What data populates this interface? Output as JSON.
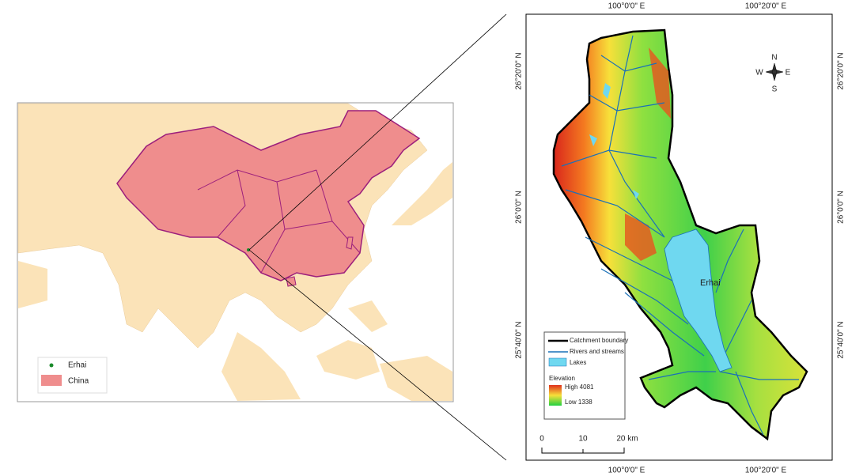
{
  "inset_map": {
    "legend": {
      "erhai": "Erhai",
      "china": "China"
    }
  },
  "catchment_map": {
    "grid_labels": {
      "lon_1": "100°0'0\" E",
      "lon_2": "100°20'0\" E",
      "lat_1": "26°20'0\" N",
      "lat_2": "26°0'0\" N",
      "lat_3": "25°40'0\" N"
    },
    "compass": {
      "n": "N",
      "e": "E",
      "s": "S",
      "w": "W"
    },
    "lake_label": "Erhai",
    "legend": {
      "boundary": "Catchment boundary",
      "rivers": "Rivers and streams",
      "lakes": "Lakes",
      "elevation": "Elevation",
      "high": "High 4081",
      "low": "Low  1338"
    },
    "scale_bar": {
      "zero": "0",
      "mid": "10",
      "end": "20 km"
    }
  }
}
